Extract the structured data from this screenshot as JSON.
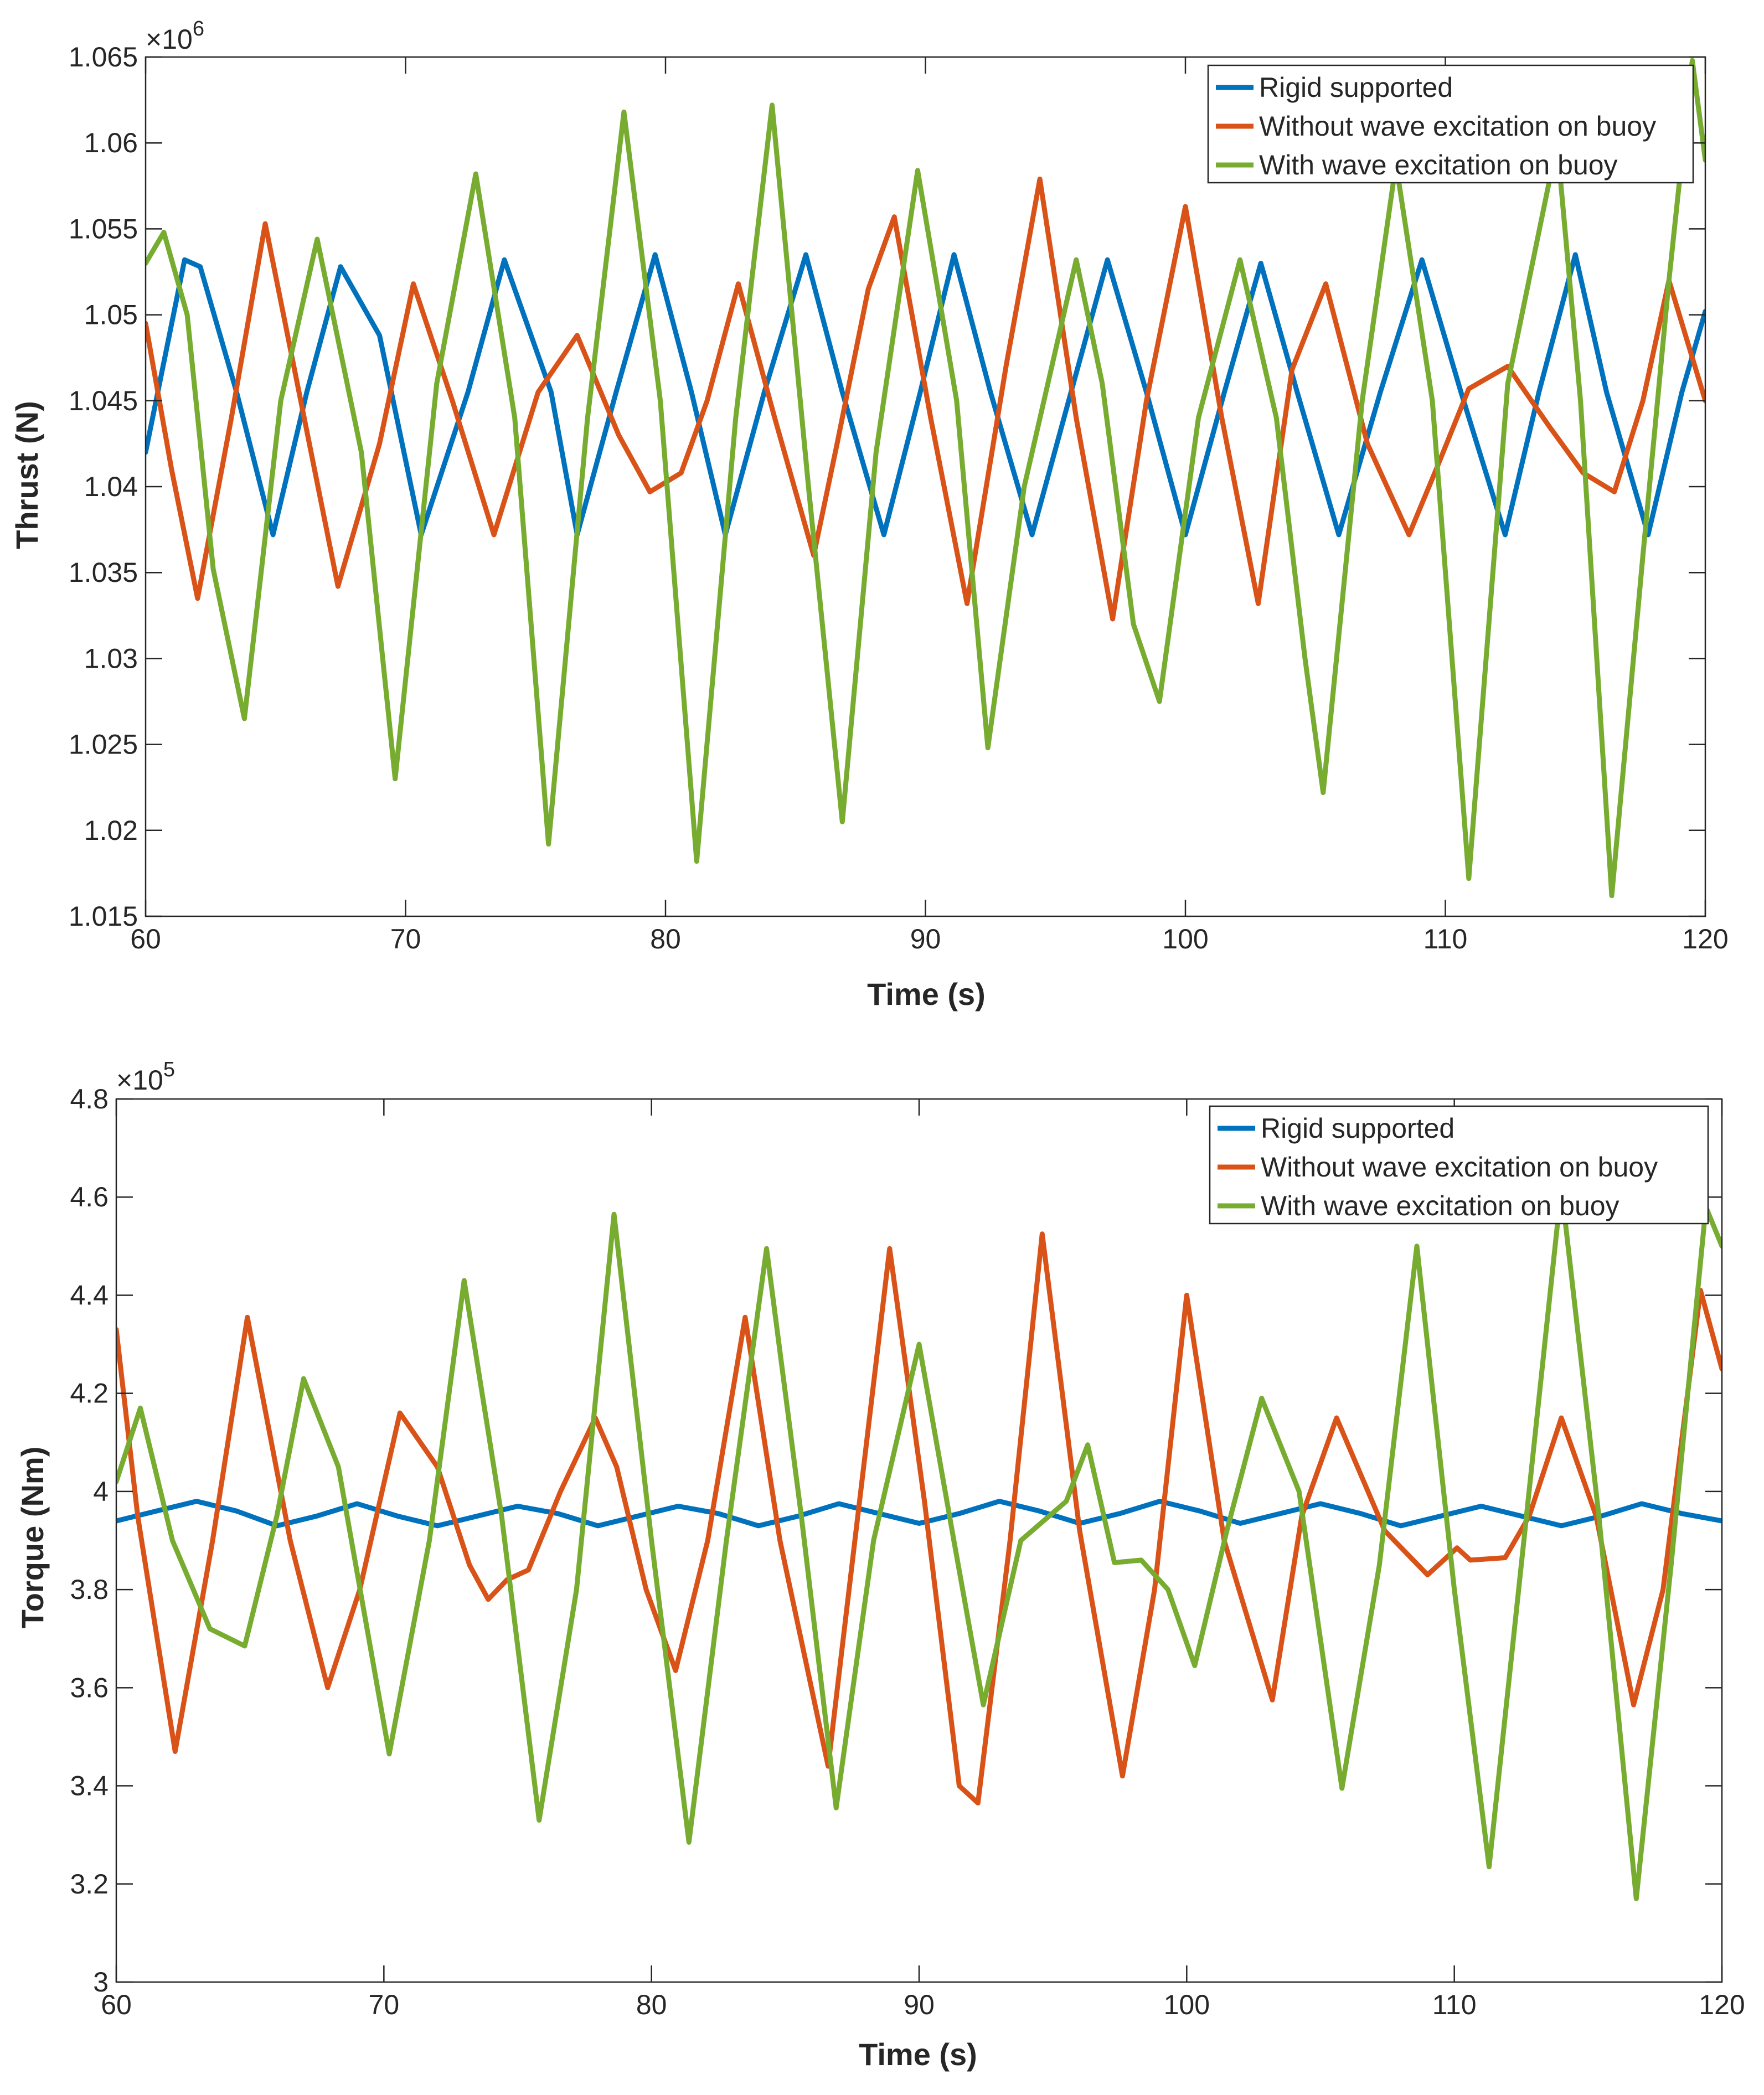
{
  "colors": {
    "rigid": "#0072BD",
    "without": "#D95319",
    "with": "#77AC30",
    "axis": "#262626",
    "background": "#ffffff"
  },
  "chart_data": [
    {
      "type": "line",
      "xlabel": "Time (s)",
      "ylabel": "Thrust (N)",
      "exponent_label": "×10",
      "exponent_power": "6",
      "xlim": [
        60,
        120
      ],
      "ylim": [
        1.015,
        1.065
      ],
      "xticks": [
        60,
        70,
        80,
        90,
        100,
        110,
        120
      ],
      "xtick_labels": [
        "60",
        "70",
        "80",
        "90",
        "100",
        "110",
        "120"
      ],
      "yticks": [
        1.015,
        1.02,
        1.025,
        1.03,
        1.035,
        1.04,
        1.045,
        1.05,
        1.055,
        1.06,
        1.065
      ],
      "ytick_labels": [
        "1.015",
        "1.02",
        "1.025",
        "1.03",
        "1.035",
        "1.04",
        "1.045",
        "1.05",
        "1.055",
        "1.06",
        "1.065"
      ],
      "legend_position": "top-right",
      "series": [
        {
          "name": "Rigid supported",
          "color_key": "rigid",
          "x": [
            60,
            61.5,
            62.1,
            63.5,
            64.9,
            66.2,
            67.5,
            69.0,
            70.6,
            72.4,
            73.8,
            75.6,
            76.6,
            78.1,
            79.6,
            81.0,
            82.3,
            83.8,
            85.4,
            86.8,
            88.4,
            89.8,
            91.1,
            92.5,
            94.1,
            95.6,
            97.0,
            98.5,
            100.0,
            101.5,
            102.9,
            104.3,
            105.9,
            107.5,
            109.1,
            110.6,
            112.3,
            113.6,
            115.0,
            116.2,
            117.8,
            119.1,
            120
          ],
          "y": [
            1.042,
            1.0532,
            1.0528,
            1.0455,
            1.0372,
            1.0455,
            1.0528,
            1.0488,
            1.0372,
            1.0455,
            1.0532,
            1.0455,
            1.0372,
            1.0455,
            1.0535,
            1.0455,
            1.0372,
            1.0455,
            1.0535,
            1.0455,
            1.0372,
            1.0455,
            1.0535,
            1.0455,
            1.0372,
            1.0455,
            1.0532,
            1.0455,
            1.0372,
            1.0455,
            1.053,
            1.0455,
            1.0372,
            1.0455,
            1.0532,
            1.0455,
            1.0372,
            1.0455,
            1.0535,
            1.0455,
            1.0372,
            1.0455,
            1.0502
          ]
        },
        {
          "name": "Without wave excitation on buoy",
          "color_key": "without",
          "x": [
            60,
            61.0,
            62.0,
            63.3,
            64.6,
            66.1,
            67.4,
            69.0,
            70.3,
            71.8,
            73.4,
            75.1,
            76.6,
            78.2,
            79.4,
            80.6,
            81.6,
            82.8,
            84.2,
            85.7,
            86.6,
            87.8,
            88.8,
            90.2,
            91.6,
            93.1,
            94.4,
            95.8,
            97.2,
            98.5,
            100.0,
            101.4,
            102.8,
            104.1,
            105.4,
            107.0,
            108.6,
            109.7,
            110.9,
            112.4,
            114.0,
            115.3,
            116.5,
            117.6,
            118.6,
            120
          ],
          "y": [
            1.0495,
            1.041,
            1.0335,
            1.044,
            1.0553,
            1.044,
            1.0342,
            1.0425,
            1.0518,
            1.045,
            1.0372,
            1.0455,
            1.0488,
            1.043,
            1.0397,
            1.0408,
            1.045,
            1.0518,
            1.044,
            1.036,
            1.0425,
            1.0515,
            1.0557,
            1.044,
            1.0332,
            1.047,
            1.0579,
            1.044,
            1.0323,
            1.045,
            1.0563,
            1.044,
            1.0332,
            1.0468,
            1.0518,
            1.0425,
            1.0372,
            1.0412,
            1.0457,
            1.047,
            1.0435,
            1.0408,
            1.0397,
            1.045,
            1.052,
            1.045
          ]
        },
        {
          "name": "With wave excitation on buoy",
          "color_key": "with",
          "x": [
            60,
            60.7,
            61.6,
            62.6,
            63.8,
            65.2,
            66.6,
            68.3,
            69.6,
            71.2,
            72.7,
            74.2,
            75.5,
            77.0,
            78.4,
            79.8,
            81.2,
            82.7,
            84.1,
            85.5,
            86.8,
            88.1,
            89.7,
            91.2,
            92.4,
            93.8,
            95.8,
            96.8,
            98.0,
            99.0,
            100.5,
            102.1,
            103.5,
            104.6,
            105.3,
            106.8,
            108.1,
            109.5,
            110.9,
            112.4,
            114.3,
            115.2,
            116.4,
            117.6,
            118.6,
            119.5,
            120
          ],
          "y": [
            1.053,
            1.0548,
            1.05,
            1.0352,
            1.0265,
            1.045,
            1.0544,
            1.042,
            1.023,
            1.046,
            1.0582,
            1.044,
            1.0192,
            1.044,
            1.0618,
            1.045,
            1.0182,
            1.044,
            1.0622,
            1.04,
            1.0205,
            1.042,
            1.0584,
            1.045,
            1.0248,
            1.04,
            1.0532,
            1.046,
            1.032,
            1.0275,
            1.044,
            1.0532,
            1.044,
            1.03,
            1.0222,
            1.045,
            1.0588,
            1.045,
            1.0172,
            1.046,
            1.06,
            1.045,
            1.0162,
            1.036,
            1.052,
            1.0648,
            1.059
          ]
        }
      ]
    },
    {
      "type": "line",
      "xlabel": "Time (s)",
      "ylabel": "Torque (Nm)",
      "exponent_label": "×10",
      "exponent_power": "5",
      "xlim": [
        60,
        120
      ],
      "ylim": [
        3.0,
        4.8
      ],
      "xticks": [
        60,
        70,
        80,
        90,
        100,
        110,
        120
      ],
      "xtick_labels": [
        "60",
        "70",
        "80",
        "90",
        "100",
        "110",
        "120"
      ],
      "yticks": [
        3.0,
        3.2,
        3.4,
        3.6,
        3.8,
        4.0,
        4.2,
        4.4,
        4.6,
        4.8
      ],
      "ytick_labels": [
        "3",
        "3.2",
        "3.4",
        "3.6",
        "3.8",
        "4",
        "4.2",
        "4.4",
        "4.6",
        "4.8"
      ],
      "legend_position": "top-right",
      "series": [
        {
          "name": "Rigid supported",
          "color_key": "rigid",
          "x": [
            60,
            61.5,
            63.0,
            64.5,
            66.0,
            67.5,
            69.0,
            70.5,
            72.0,
            73.5,
            75.0,
            76.5,
            78.0,
            79.5,
            81.0,
            82.5,
            84.0,
            85.5,
            87.0,
            88.5,
            90.0,
            91.5,
            93.0,
            94.5,
            96.0,
            97.5,
            99.0,
            100.5,
            102.0,
            103.5,
            105.0,
            106.5,
            108.0,
            109.5,
            111.0,
            112.5,
            114.0,
            115.5,
            117.0,
            118.5,
            120
          ],
          "y": [
            3.94,
            3.96,
            3.98,
            3.96,
            3.93,
            3.95,
            3.975,
            3.95,
            3.93,
            3.95,
            3.97,
            3.955,
            3.93,
            3.95,
            3.97,
            3.955,
            3.93,
            3.95,
            3.975,
            3.955,
            3.935,
            3.955,
            3.98,
            3.96,
            3.935,
            3.955,
            3.98,
            3.96,
            3.935,
            3.955,
            3.975,
            3.955,
            3.93,
            3.95,
            3.97,
            3.95,
            3.93,
            3.95,
            3.975,
            3.955,
            3.94
          ]
        },
        {
          "name": "Without wave excitation on buoy",
          "color_key": "without",
          "x": [
            60,
            60.8,
            62.2,
            63.6,
            64.9,
            66.5,
            67.9,
            69.1,
            70.6,
            72.0,
            73.2,
            73.9,
            74.6,
            75.4,
            76.6,
            77.9,
            78.7,
            79.8,
            80.9,
            82.1,
            83.5,
            84.8,
            86.6,
            87.6,
            88.9,
            90.2,
            91.5,
            92.2,
            93.4,
            94.6,
            96.0,
            97.6,
            98.8,
            100.0,
            101.4,
            103.2,
            104.3,
            105.6,
            107.4,
            109.0,
            110.1,
            110.6,
            111.9,
            112.8,
            114.0,
            115.3,
            116.7,
            117.8,
            119.2,
            120
          ],
          "y": [
            4.33,
            3.95,
            3.47,
            3.9,
            4.355,
            3.9,
            3.6,
            3.8,
            4.16,
            4.05,
            3.85,
            3.78,
            3.82,
            3.84,
            4.0,
            4.15,
            4.05,
            3.8,
            3.635,
            3.9,
            4.355,
            3.9,
            3.44,
            3.9,
            4.495,
            3.98,
            3.4,
            3.365,
            3.9,
            4.525,
            3.92,
            3.42,
            3.8,
            4.4,
            3.9,
            3.575,
            3.95,
            4.15,
            3.92,
            3.83,
            3.885,
            3.86,
            3.865,
            3.95,
            4.15,
            3.95,
            3.565,
            3.8,
            4.41,
            4.25
          ]
        },
        {
          "name": "With wave excitation on buoy",
          "color_key": "with",
          "x": [
            60,
            60.9,
            62.1,
            63.5,
            64.8,
            66.0,
            67.0,
            68.3,
            70.2,
            71.7,
            73.0,
            74.4,
            75.8,
            77.2,
            78.6,
            80.0,
            81.4,
            82.8,
            84.3,
            85.6,
            86.9,
            88.3,
            90.0,
            91.3,
            92.4,
            93.8,
            95.5,
            96.3,
            97.3,
            98.3,
            99.3,
            100.3,
            101.5,
            102.8,
            104.2,
            105.8,
            107.2,
            108.6,
            110.0,
            111.3,
            112.6,
            114.0,
            115.4,
            116.8,
            118.1,
            119.4,
            120
          ],
          "y": [
            4.02,
            4.17,
            3.9,
            3.72,
            3.685,
            3.95,
            4.23,
            4.05,
            3.465,
            3.9,
            4.43,
            3.95,
            3.33,
            3.8,
            4.565,
            3.9,
            3.285,
            3.9,
            4.495,
            3.95,
            3.355,
            3.9,
            4.3,
            3.9,
            3.565,
            3.9,
            3.98,
            4.095,
            3.855,
            3.86,
            3.8,
            3.645,
            3.92,
            4.19,
            4.0,
            3.395,
            3.85,
            4.5,
            3.8,
            3.235,
            3.9,
            4.62,
            3.95,
            3.17,
            3.85,
            4.58,
            4.5
          ]
        }
      ]
    }
  ]
}
